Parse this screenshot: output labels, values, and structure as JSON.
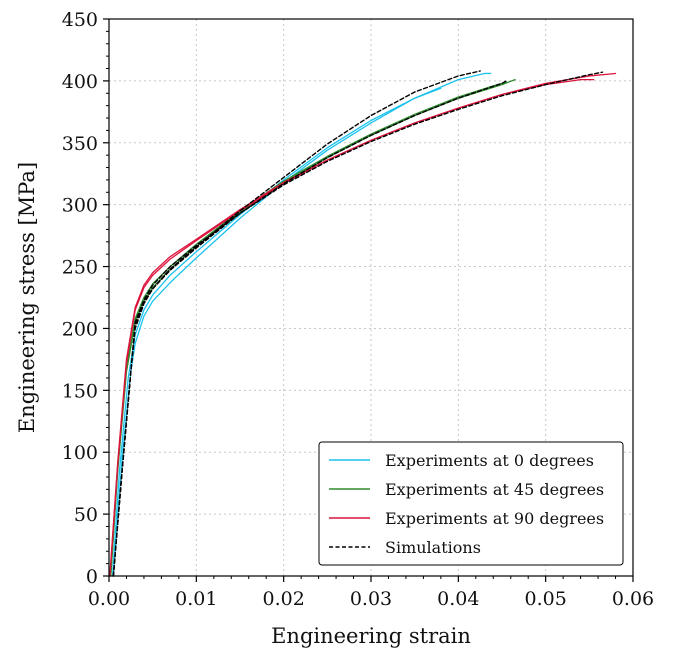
{
  "chart_data": {
    "type": "line",
    "xlabel": "Engineering strain",
    "ylabel": "Engineering stress [MPa]",
    "xlim": [
      0,
      0.06
    ],
    "ylim": [
      0,
      450
    ],
    "xticks": [
      0.0,
      0.01,
      0.02,
      0.03,
      0.04,
      0.05,
      0.06
    ],
    "xtick_labels": [
      "0.00",
      "0.01",
      "0.02",
      "0.03",
      "0.04",
      "0.05",
      "0.06"
    ],
    "yticks": [
      0,
      50,
      100,
      150,
      200,
      250,
      300,
      350,
      400,
      450
    ],
    "ytick_labels": [
      "0",
      "50",
      "100",
      "150",
      "200",
      "250",
      "300",
      "350",
      "400",
      "450"
    ],
    "grid": true,
    "legend_position": "lower-right",
    "legend": [
      {
        "label": "Experiments at 0 degrees",
        "color": "#1cc2ee",
        "style": "solid"
      },
      {
        "label": "Experiments at 45 degrees",
        "color": "#2e8b2e",
        "style": "solid"
      },
      {
        "label": "Experiments at 90 degrees",
        "color": "#dc143c",
        "style": "solid"
      },
      {
        "label": "Simulations",
        "color": "#000000",
        "style": "dashed"
      }
    ],
    "series": [
      {
        "group": "Experiments at 0 degrees",
        "color": "#1cc2ee",
        "style": "solid",
        "x": [
          0.0005,
          0.0015,
          0.0025,
          0.003,
          0.004,
          0.005,
          0.007,
          0.01,
          0.015,
          0.02,
          0.025,
          0.03,
          0.035,
          0.04,
          0.043,
          0.0437
        ],
        "y": [
          0,
          95,
          165,
          188,
          210,
          222,
          237,
          257,
          289,
          318,
          344,
          366,
          386,
          401,
          406,
          406
        ]
      },
      {
        "group": "Experiments at 0 degrees",
        "color": "#1cc2ee",
        "style": "solid",
        "x": [
          0.0004,
          0.0012,
          0.0022,
          0.003,
          0.004,
          0.005,
          0.007,
          0.01,
          0.015,
          0.02,
          0.025,
          0.03,
          0.035,
          0.038
        ],
        "y": [
          0,
          85,
          160,
          195,
          215,
          227,
          243,
          262,
          292,
          320,
          346,
          368,
          386,
          394
        ]
      },
      {
        "group": "Experiments at 45 degrees",
        "color": "#2e8b2e",
        "style": "solid",
        "x": [
          0.0002,
          0.001,
          0.002,
          0.003,
          0.004,
          0.005,
          0.007,
          0.01,
          0.015,
          0.02,
          0.025,
          0.03,
          0.035,
          0.04,
          0.045,
          0.0465
        ],
        "y": [
          0,
          85,
          165,
          205,
          222,
          233,
          248,
          266,
          294,
          318,
          338,
          356,
          372,
          386,
          397,
          401
        ]
      },
      {
        "group": "Experiments at 45 degrees",
        "color": "#2e8b2e",
        "style": "solid",
        "x": [
          0.0002,
          0.001,
          0.002,
          0.003,
          0.004,
          0.005,
          0.007,
          0.01,
          0.015,
          0.02,
          0.025,
          0.03,
          0.035,
          0.04,
          0.044,
          0.0455
        ],
        "y": [
          0,
          88,
          168,
          208,
          225,
          236,
          250,
          268,
          295,
          319,
          339,
          357,
          373,
          387,
          396,
          399
        ]
      },
      {
        "group": "Experiments at 90 degrees",
        "color": "#dc143c",
        "style": "solid",
        "x": [
          0.0001,
          0.001,
          0.002,
          0.003,
          0.004,
          0.005,
          0.007,
          0.01,
          0.015,
          0.02,
          0.025,
          0.03,
          0.035,
          0.04,
          0.045,
          0.05,
          0.055,
          0.058
        ],
        "y": [
          0,
          90,
          172,
          215,
          233,
          243,
          256,
          271,
          295,
          317,
          336,
          352,
          366,
          378,
          389,
          398,
          404,
          406
        ]
      },
      {
        "group": "Experiments at 90 degrees",
        "color": "#dc143c",
        "style": "solid",
        "x": [
          0.0001,
          0.001,
          0.002,
          0.003,
          0.004,
          0.005,
          0.007,
          0.01,
          0.015,
          0.02,
          0.025,
          0.03,
          0.035,
          0.04,
          0.045,
          0.05,
          0.054,
          0.0555
        ],
        "y": [
          0,
          92,
          175,
          217,
          235,
          245,
          258,
          272,
          296,
          318,
          336,
          352,
          366,
          378,
          389,
          397,
          401,
          401
        ]
      },
      {
        "group": "Simulations",
        "color": "#000000",
        "style": "dashed",
        "x": [
          0.0005,
          0.0015,
          0.0025,
          0.003,
          0.004,
          0.005,
          0.007,
          0.01,
          0.015,
          0.02,
          0.025,
          0.03,
          0.035,
          0.04,
          0.0425
        ],
        "y": [
          0,
          85,
          165,
          200,
          220,
          232,
          248,
          266,
          295,
          322,
          349,
          372,
          391,
          404,
          408
        ]
      },
      {
        "group": "Simulations",
        "color": "#000000",
        "style": "dashed",
        "x": [
          0.0005,
          0.0015,
          0.0025,
          0.003,
          0.004,
          0.005,
          0.007,
          0.01,
          0.015,
          0.02,
          0.025,
          0.03,
          0.035,
          0.04,
          0.045,
          0.0455
        ],
        "y": [
          0,
          85,
          165,
          203,
          221,
          232,
          247,
          265,
          293,
          317,
          338,
          356,
          372,
          386,
          398,
          400
        ]
      },
      {
        "group": "Simulations",
        "color": "#000000",
        "style": "dashed",
        "x": [
          0.0005,
          0.0015,
          0.0025,
          0.003,
          0.004,
          0.005,
          0.007,
          0.01,
          0.015,
          0.02,
          0.025,
          0.03,
          0.035,
          0.04,
          0.045,
          0.05,
          0.055,
          0.0565
        ],
        "y": [
          0,
          85,
          165,
          205,
          223,
          235,
          250,
          267,
          293,
          316,
          335,
          351,
          365,
          377,
          388,
          397,
          405,
          407
        ]
      }
    ]
  }
}
